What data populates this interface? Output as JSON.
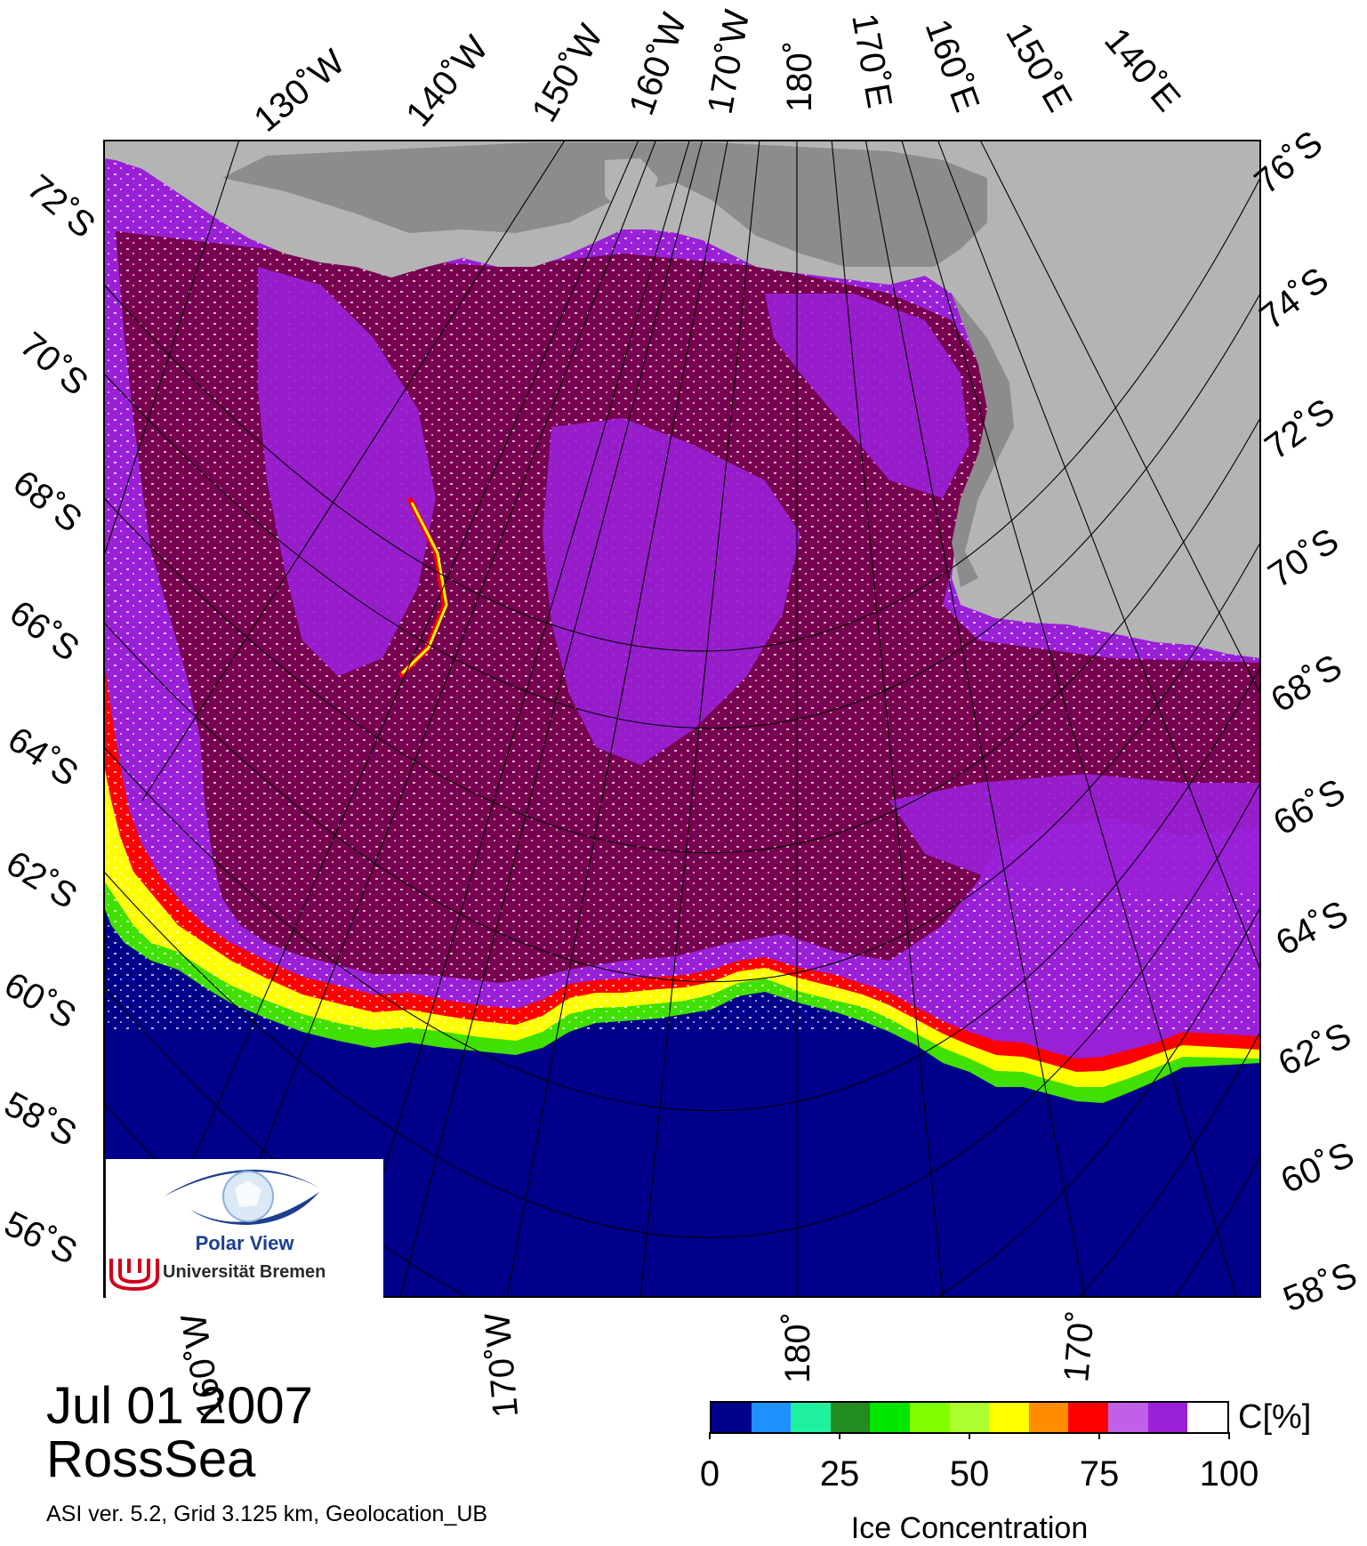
{
  "map": {
    "date": "Jul 01 2007",
    "region": "RossSea",
    "footer": "ASI ver. 5.2,  Grid 3.125 km, Geolocation_UB",
    "colors": {
      "land": "#b4b4b4",
      "ice_shelf": "#8c8c8c",
      "open_water": "#00008b",
      "full_ice": "#780050",
      "high_ice": "#9a20d8",
      "mid_ice": "#c060e8",
      "marginal_red": "#ff0000",
      "marginal_yellow": "#ffff00",
      "marginal_green": "#40e000"
    },
    "meridian_labels_top": [
      "130˚W",
      "140˚W",
      "150˚W",
      "160˚W",
      "170˚W",
      "180˚",
      "170˚E",
      "160˚E",
      "150˚E",
      "140˚E"
    ],
    "meridian_labels_bottom": [
      "160˚W",
      "170˚W",
      "180˚",
      "170˚"
    ],
    "parallel_labels_left": [
      "72˚S",
      "70˚S",
      "68˚S",
      "66˚S",
      "64˚S",
      "62˚S",
      "60˚S",
      "58˚S",
      "56˚S"
    ],
    "parallel_labels_right": [
      "76˚S",
      "74˚S",
      "72˚S",
      "70˚S",
      "68˚S",
      "66˚S",
      "64˚S",
      "62˚S",
      "60˚S",
      "58˚S"
    ]
  },
  "logo": {
    "name": "Polar View",
    "institution": "Universität Bremen",
    "icon": "eye-globe-icon"
  },
  "legend": {
    "unit": "C[%]",
    "title": "Ice Concentration",
    "ticks": [
      "0",
      "25",
      "50",
      "75",
      "100"
    ],
    "tick_values": [
      0,
      25,
      50,
      75,
      100
    ],
    "colors": [
      "#00008b",
      "#1e90ff",
      "#1ef0a0",
      "#228b22",
      "#00e600",
      "#7fff00",
      "#adff2f",
      "#ffff00",
      "#ff8c00",
      "#ff0000",
      "#c060e8",
      "#9a20d8",
      "#ffffff"
    ]
  }
}
